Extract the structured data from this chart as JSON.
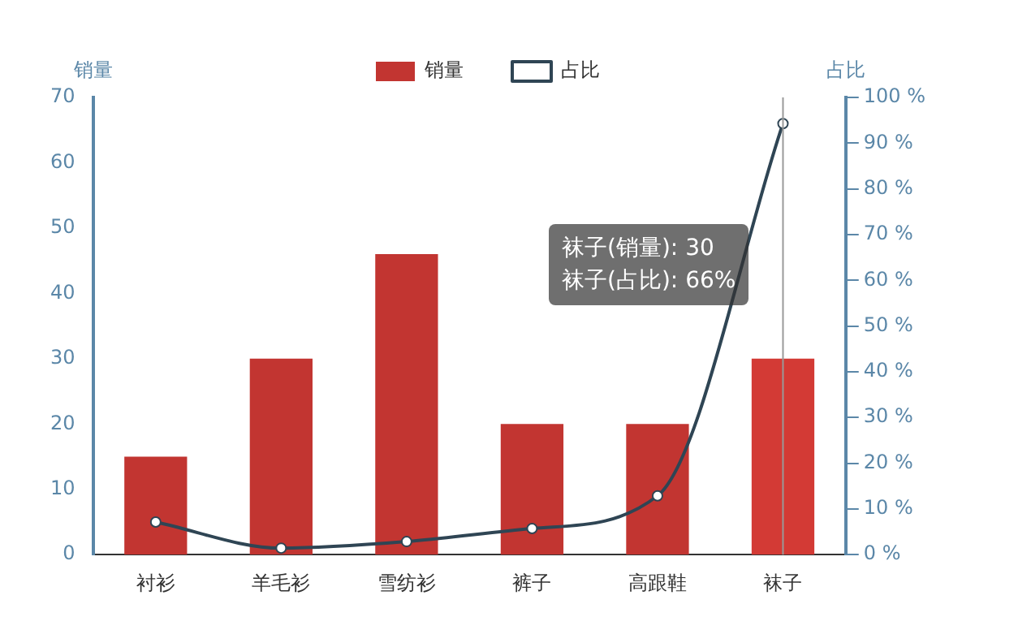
{
  "chart_data": {
    "type": "bar",
    "categories": [
      "衬衫",
      "羊毛衫",
      "雪纺衫",
      "裤子",
      "高跟鞋",
      "袜子"
    ],
    "series": [
      {
        "name": "销量",
        "colors": [
          "#c23531",
          "#c23531",
          "#c23531",
          "#c23531",
          "#c23531",
          "#d33a35"
        ],
        "values": [
          15,
          30,
          46,
          20,
          20,
          30
        ]
      },
      {
        "name": "占比",
        "type": "line",
        "color": "#2f4554",
        "values": [
          5,
          1,
          2,
          4,
          9,
          66
        ]
      }
    ],
    "ylabel": "销量",
    "y2label": "占比",
    "ylim": [
      0,
      70
    ],
    "yticks": [
      0,
      10,
      20,
      30,
      40,
      50,
      60,
      70
    ],
    "y2lim": [
      0,
      100
    ],
    "y2ticks": [
      {
        "value": 0,
        "label": "0 %"
      },
      {
        "value": 10,
        "label": "10 %"
      },
      {
        "value": 20,
        "label": "20 %"
      },
      {
        "value": 30,
        "label": "30 %"
      },
      {
        "value": 40,
        "label": "40 %"
      },
      {
        "value": 50,
        "label": "50 %"
      },
      {
        "value": 60,
        "label": "60 %"
      },
      {
        "value": 70,
        "label": "70 %"
      },
      {
        "value": 80,
        "label": "80 %"
      },
      {
        "value": 90,
        "label": "90 %"
      },
      {
        "value": 100,
        "label": "100 %"
      }
    ],
    "ref_lines": [
      {
        "axis": "x",
        "value": "袜子",
        "color": "#999999"
      }
    ],
    "annotations": [
      "袜子(销量): 30",
      "袜子(占比): 66%"
    ],
    "legend": "top",
    "marker": "circle",
    "grid": false
  }
}
